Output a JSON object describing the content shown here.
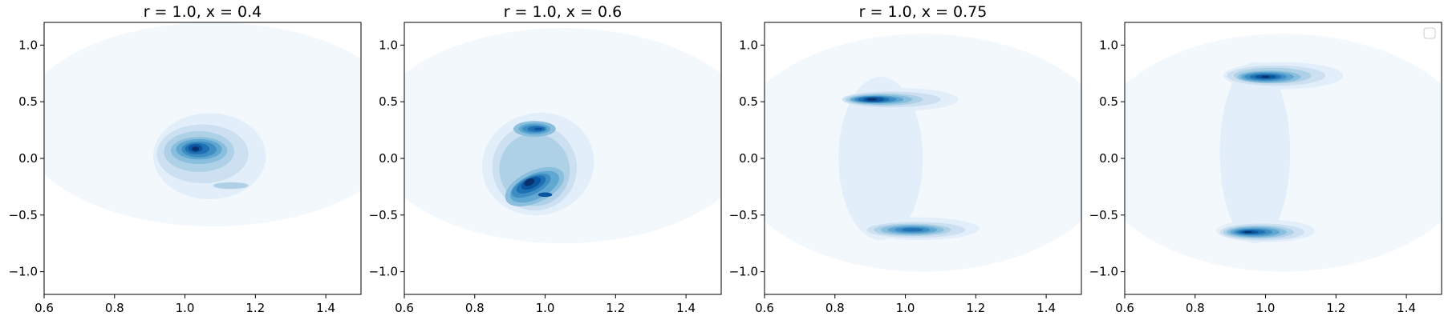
{
  "colors": {
    "levels": [
      "#f3f8fd",
      "#e2eef9",
      "#cde0f1",
      "#afd1e7",
      "#89bedc",
      "#60a7d2",
      "#3e8ec4",
      "#2070b4",
      "#0b559f",
      "#08306b"
    ]
  },
  "chart_data": [
    {
      "type": "contour",
      "title": "r = 1.0, x = 0.4",
      "xlim": [
        0.6,
        1.5
      ],
      "ylim": [
        -1.2,
        1.2
      ],
      "xticks": [
        0.6,
        0.8,
        1.0,
        1.2,
        1.4
      ],
      "xtick_labels": [
        "0.6",
        "0.8",
        "1.0",
        "1.2",
        "1.4"
      ],
      "yticks": [
        1.0,
        0.5,
        0.0,
        -0.5,
        -1.0
      ],
      "ytick_labels": [
        "1.0",
        "0.5",
        "0.0",
        "−0.5",
        "−1.0"
      ],
      "density_peaks": [
        {
          "x": 1.03,
          "y": 0.08,
          "level": 9
        },
        {
          "x": 1.13,
          "y": -0.24,
          "level": 3
        }
      ],
      "legend": false
    },
    {
      "type": "contour",
      "title": "r = 1.0, x = 0.6",
      "xlim": [
        0.6,
        1.5
      ],
      "ylim": [
        -1.2,
        1.2
      ],
      "xticks": [
        0.6,
        0.8,
        1.0,
        1.2,
        1.4
      ],
      "xtick_labels": [
        "0.6",
        "0.8",
        "1.0",
        "1.2",
        "1.4"
      ],
      "yticks": [
        1.0,
        0.5,
        0.0,
        -0.5,
        -1.0
      ],
      "ytick_labels": [
        "1.0",
        "0.5",
        "0.0",
        "−0.5",
        "−1.0"
      ],
      "density_peaks": [
        {
          "x": 0.97,
          "y": 0.26,
          "level": 8
        },
        {
          "x": 0.95,
          "y": -0.22,
          "level": 9
        },
        {
          "x": 1.0,
          "y": -0.32,
          "level": 8
        }
      ],
      "legend": false
    },
    {
      "type": "contour",
      "title": "r = 1.0, x = 0.75",
      "xlim": [
        0.6,
        1.5
      ],
      "ylim": [
        -1.2,
        1.2
      ],
      "xticks": [
        0.6,
        0.8,
        1.0,
        1.2,
        1.4
      ],
      "xtick_labels": [
        "0.6",
        "0.8",
        "1.0",
        "1.2",
        "1.4"
      ],
      "yticks": [
        1.0,
        0.5,
        0.0,
        -0.5,
        -1.0
      ],
      "ytick_labels": [
        "1.0",
        "0.5",
        "0.0",
        "−0.5",
        "−1.0"
      ],
      "density_peaks": [
        {
          "x": 0.91,
          "y": 0.52,
          "level": 9
        },
        {
          "x": 1.02,
          "y": -0.63,
          "level": 7
        }
      ],
      "legend": false
    },
    {
      "type": "contour",
      "title": "",
      "xlim": [
        0.6,
        1.5
      ],
      "ylim": [
        -1.2,
        1.2
      ],
      "xticks": [
        0.6,
        0.8,
        1.0,
        1.2,
        1.4
      ],
      "xtick_labels": [
        "0.6",
        "0.8",
        "1.0",
        "1.2",
        "1.4"
      ],
      "yticks": [
        1.0,
        0.5,
        0.0,
        -0.5,
        -1.0
      ],
      "ytick_labels": [
        "1.0",
        "0.5",
        "0.0",
        "−0.5",
        "−1.0"
      ],
      "density_peaks": [
        {
          "x": 1.0,
          "y": 0.72,
          "level": 9
        },
        {
          "x": 0.96,
          "y": -0.65,
          "level": 9
        }
      ],
      "legend": true,
      "legend_placement": "upper right"
    }
  ]
}
